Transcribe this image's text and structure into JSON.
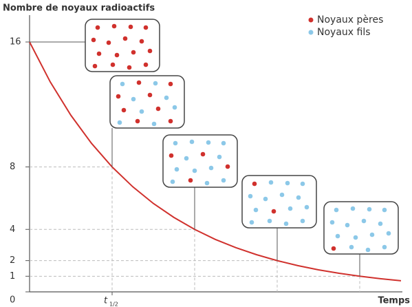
{
  "chart_data": {
    "type": "line",
    "y_label": "Nombre de noyaux radioactifs",
    "x_label": "Temps",
    "xlim": [
      0,
      4.5
    ],
    "ylim": [
      0,
      16
    ],
    "yticks": [
      0,
      1,
      2,
      4,
      8,
      16
    ],
    "xticks": [
      {
        "value": 1,
        "label": "t",
        "sub": "1/2"
      }
    ],
    "x": [
      0,
      0.25,
      0.5,
      0.75,
      1,
      1.25,
      1.5,
      1.75,
      2,
      2.25,
      2.5,
      2.75,
      3,
      3.25,
      3.5,
      3.75,
      4,
      4.25,
      4.5
    ],
    "values": [
      16,
      13.45,
      11.31,
      9.51,
      8,
      6.73,
      5.66,
      4.76,
      4,
      3.36,
      2.83,
      2.38,
      2,
      1.68,
      1.41,
      1.19,
      1,
      0.84,
      0.71
    ],
    "color": "#d0312d",
    "guides": {
      "x": [
        0,
        1,
        2,
        3,
        4
      ],
      "y": [
        16,
        8,
        4,
        2,
        1
      ]
    },
    "series": [
      {
        "name": "Noyaux pères",
        "color": "#d0312d"
      },
      {
        "name": "Noyaux fils",
        "color": "#8cc8e8"
      }
    ],
    "insets": [
      {
        "parents": 16,
        "daughters": 0
      },
      {
        "parents": 8,
        "daughters": 8
      },
      {
        "parents": 4,
        "daughters": 12
      },
      {
        "parents": 2,
        "daughters": 14
      },
      {
        "parents": 1,
        "daughters": 15
      }
    ]
  }
}
